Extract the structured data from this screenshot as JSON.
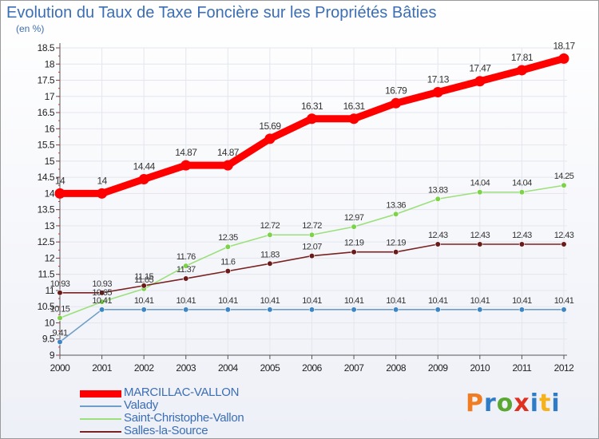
{
  "header": {
    "title": "Evolution du Taux de Taxe Foncière sur les Propriétés Bâties",
    "unit": "(en %)"
  },
  "logo": {
    "text": "Proxiti",
    "colors": [
      "#f07d22",
      "#2e7cc6",
      "#5aa832",
      "#e03020",
      "#2e7cc6",
      "#f5b21b",
      "#2e7cc6"
    ]
  },
  "chart_data": {
    "type": "line",
    "title": "Evolution du Taux de Taxe Foncière sur les Propriétés Bâties",
    "ylabel": "(en %)",
    "xlabel": "",
    "x": [
      "2000",
      "2001",
      "2002",
      "2003",
      "2004",
      "2005",
      "2006",
      "2007",
      "2008",
      "2009",
      "2010",
      "2011",
      "2012"
    ],
    "ylim": [
      9,
      18.5
    ],
    "yticks": [
      "9",
      "9.5",
      "10",
      "10.5",
      "11",
      "11.5",
      "12",
      "12.5",
      "13",
      "13.5",
      "14",
      "14.5",
      "15",
      "15.5",
      "16",
      "16.5",
      "17",
      "17.5",
      "18",
      "18.5"
    ],
    "grid": true,
    "legend_position": "bottom-left",
    "series": [
      {
        "name": "MARCILLAC-VALLON",
        "color": "#ff0000",
        "marker_color": "#ff0000",
        "emphasis": true,
        "values": [
          14,
          14,
          14.44,
          14.87,
          14.87,
          15.69,
          16.31,
          16.31,
          16.79,
          17.13,
          17.47,
          17.81,
          18.17
        ],
        "labels": [
          "14",
          "14",
          "14.44",
          "14.87",
          "14.87",
          "15.69",
          "16.31",
          "16.31",
          "16.79",
          "17.13",
          "17.47",
          "17.81",
          "18.17"
        ]
      },
      {
        "name": "Valady",
        "color": "#6f9fc8",
        "marker_color": "#3d86c6",
        "values": [
          9.41,
          10.41,
          10.41,
          10.41,
          10.41,
          10.41,
          10.41,
          10.41,
          10.41,
          10.41,
          10.41,
          10.41,
          10.41
        ],
        "labels": [
          "9.41",
          "10.41",
          "10.41",
          "10.41",
          "10.41",
          "10.41",
          "10.41",
          "10.41",
          "10.41",
          "10.41",
          "10.41",
          "10.41",
          "10.41"
        ]
      },
      {
        "name": "Saint-Christophe-Vallon",
        "color": "#9be07a",
        "marker_color": "#7cd34a",
        "values": [
          10.15,
          10.65,
          11.05,
          11.76,
          12.35,
          12.72,
          12.72,
          12.97,
          13.36,
          13.83,
          14.04,
          14.04,
          14.25
        ],
        "labels": [
          "10.15",
          "10.65",
          "11.05",
          "11.76",
          "12.35",
          "12.72",
          "12.72",
          "12.97",
          "13.36",
          "13.83",
          "14.04",
          "14.04",
          "14.25"
        ]
      },
      {
        "name": "Salles-la-Source",
        "color": "#7a2222",
        "marker_color": "#6b1a1a",
        "values": [
          10.93,
          10.93,
          11.15,
          11.37,
          11.6,
          11.83,
          12.07,
          12.19,
          12.19,
          12.43,
          12.43,
          12.43,
          12.43
        ],
        "labels": [
          "10.93",
          "10.93",
          "11.15",
          "11.37",
          "11.6",
          "11.83",
          "12.07",
          "12.19",
          "12.19",
          "12.43",
          "12.43",
          "12.43",
          "12.43"
        ]
      }
    ]
  }
}
